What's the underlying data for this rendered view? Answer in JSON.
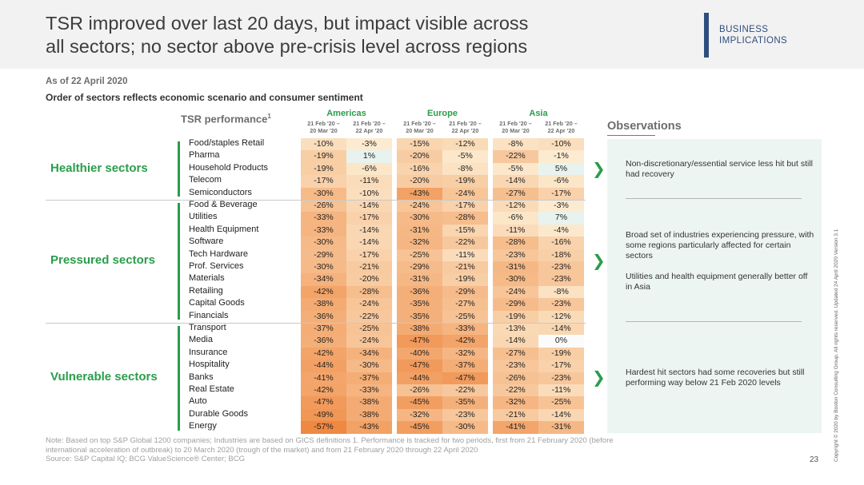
{
  "title": {
    "line1": "TSR improved over last 20 days, but impact visible across",
    "line2": "all sectors; no sector above pre-crisis level across regions"
  },
  "tag": {
    "line1": "BUSINESS",
    "line2": "IMPLICATIONS"
  },
  "as_of": "As of 22 April 2020",
  "subtitle": "Order of sectors reflects economic scenario and consumer sentiment",
  "observations": {
    "title": "Observations",
    "items": [
      [
        "Non-discretionary/essential service less hit but still had recovery"
      ],
      [
        "Broad set of industries experiencing pressure, with some regions particularly affected for certain sectors",
        "Utilities and health equipment generally better off in Asia"
      ],
      [
        "Hardest hit sectors had some recoveries but still performing way below 21 Feb 2020 levels"
      ]
    ],
    "chevron": "❯"
  },
  "note": {
    "line1": "Note: Based on top S&P Global 1200 companies; Industries are based on GICS definitions  1. Performance is tracked for two periods, first from 21 February 2020 (before",
    "line2": "international acceleration of outbreak) to 20 March 2020 (trough of the market) and from 21 February 2020 through 22 April 2020",
    "source": "Source: S&P Capital IQ; BCG ValueScience® Center; BCG"
  },
  "page_number": "23",
  "copyright": "Copyright © 2020 by Boston Consulting Group. All rights reserved.   Updated 24 April 2020 Version 3.1",
  "chart_data": {
    "type": "heatmap",
    "title": "TSR performance",
    "title_footnote": "1",
    "regions": [
      "Americas",
      "Europe",
      "Asia"
    ],
    "periods": [
      "21 Feb '20 – 20 Mar '20",
      "21 Feb '20 – 22 Apr '20"
    ],
    "columns": [
      {
        "region": "Americas",
        "period_line1": "21 Feb '20 –",
        "period_line2": "20 Mar '20"
      },
      {
        "region": "Americas",
        "period_line1": "21 Feb '20 –",
        "period_line2": "22 Apr '20"
      },
      {
        "region": "Europe",
        "period_line1": "21 Feb '20 –",
        "period_line2": "20 Mar '20"
      },
      {
        "region": "Europe",
        "period_line1": "21 Feb '20 –",
        "period_line2": "22 Apr '20"
      },
      {
        "region": "Asia",
        "period_line1": "21 Feb '20 –",
        "period_line2": "20 Mar '20"
      },
      {
        "region": "Asia",
        "period_line1": "21 Feb '20 –",
        "period_line2": "22 Apr '20"
      }
    ],
    "unit": "%",
    "color_scale": {
      "positive": "#e8f2ee",
      "neutral": "#fbfbfb",
      "light": "#fcebd0",
      "dark": "#ef8840"
    },
    "groups": [
      {
        "name": "Healthier sectors",
        "rows": [
          {
            "sector": "Food/staples Retail",
            "values": [
              -10,
              -3,
              -15,
              -12,
              -8,
              -10
            ]
          },
          {
            "sector": "Pharma",
            "values": [
              -19,
              1,
              -20,
              -5,
              -22,
              -1
            ]
          },
          {
            "sector": "Household Products",
            "values": [
              -19,
              -6,
              -16,
              -8,
              -5,
              5
            ]
          },
          {
            "sector": "Telecom",
            "values": [
              -17,
              -11,
              -20,
              -19,
              -14,
              -6
            ]
          },
          {
            "sector": "Semiconductors",
            "values": [
              -30,
              -10,
              -43,
              -24,
              -27,
              -17
            ]
          }
        ]
      },
      {
        "name": "Pressured sectors",
        "rows": [
          {
            "sector": "Food & Beverage",
            "values": [
              -26,
              -14,
              -24,
              -17,
              -12,
              -3
            ]
          },
          {
            "sector": "Utilities",
            "values": [
              -33,
              -17,
              -30,
              -28,
              -6,
              7
            ]
          },
          {
            "sector": "Health Equipment",
            "values": [
              -33,
              -14,
              -31,
              -15,
              -11,
              -4
            ]
          },
          {
            "sector": "Software",
            "values": [
              -30,
              -14,
              -32,
              -22,
              -28,
              -16
            ]
          },
          {
            "sector": "Tech Hardware",
            "values": [
              -29,
              -17,
              -25,
              -11,
              -23,
              -18
            ]
          },
          {
            "sector": "Prof. Services",
            "values": [
              -30,
              -21,
              -29,
              -21,
              -31,
              -23
            ]
          },
          {
            "sector": "Materials",
            "values": [
              -34,
              -20,
              -31,
              -19,
              -30,
              -23
            ]
          },
          {
            "sector": "Retailing",
            "values": [
              -42,
              -28,
              -36,
              -29,
              -24,
              -8
            ]
          },
          {
            "sector": "Capital Goods",
            "values": [
              -38,
              -24,
              -35,
              -27,
              -29,
              -23
            ]
          },
          {
            "sector": "Financials",
            "values": [
              -36,
              -22,
              -35,
              -25,
              -19,
              -12
            ]
          }
        ]
      },
      {
        "name": "Vulnerable sectors",
        "rows": [
          {
            "sector": "Transport",
            "values": [
              -37,
              -25,
              -38,
              -33,
              -13,
              -14
            ]
          },
          {
            "sector": "Media",
            "values": [
              -36,
              -24,
              -47,
              -42,
              -14,
              0
            ]
          },
          {
            "sector": "Insurance",
            "values": [
              -42,
              -34,
              -40,
              -32,
              -27,
              -19
            ]
          },
          {
            "sector": "Hospitality",
            "values": [
              -44,
              -30,
              -47,
              -37,
              -23,
              -17
            ]
          },
          {
            "sector": "Banks",
            "values": [
              -41,
              -37,
              -44,
              -47,
              -26,
              -23
            ]
          },
          {
            "sector": "Real Estate",
            "values": [
              -42,
              -33,
              -26,
              -22,
              -22,
              -11
            ]
          },
          {
            "sector": "Auto",
            "values": [
              -47,
              -38,
              -45,
              -35,
              -32,
              -25
            ]
          },
          {
            "sector": "Durable Goods",
            "values": [
              -49,
              -38,
              -32,
              -23,
              -21,
              -14
            ]
          },
          {
            "sector": "Energy",
            "values": [
              -57,
              -43,
              -45,
              -30,
              -41,
              -31
            ]
          }
        ]
      }
    ]
  }
}
